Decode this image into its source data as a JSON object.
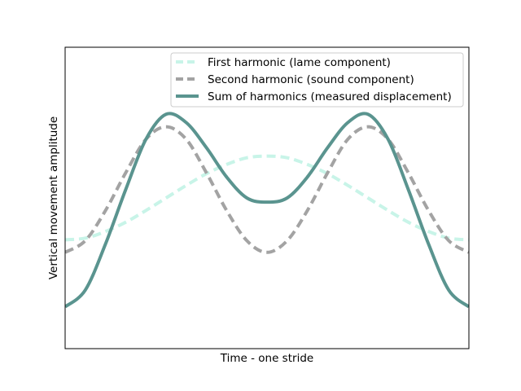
{
  "chart_data": {
    "type": "line",
    "title": "",
    "xlabel": "Time - one stride",
    "ylabel": "Vertical movement amplitude",
    "x_ticks_shown": false,
    "y_ticks_shown": false,
    "grid": false,
    "legend_position": "top-right",
    "xlim": [
      0,
      1
    ],
    "ylim": [
      -1.3,
      2.3
    ],
    "x": [
      0.0,
      0.05,
      0.1,
      0.15,
      0.2,
      0.25,
      0.3,
      0.35,
      0.4,
      0.45,
      0.5,
      0.55,
      0.6,
      0.65,
      0.7,
      0.75,
      0.8,
      0.85,
      0.9,
      0.95,
      1.0
    ],
    "series": [
      {
        "name": "First harmonic (lame component)",
        "color": "#c8f4e8",
        "style": "dashed",
        "values": [
          0.0,
          0.02,
          0.1,
          0.21,
          0.35,
          0.5,
          0.65,
          0.79,
          0.9,
          0.98,
          1.0,
          0.98,
          0.9,
          0.79,
          0.65,
          0.5,
          0.35,
          0.21,
          0.1,
          0.02,
          0.0
        ]
      },
      {
        "name": "Second harmonic (sound component)",
        "color": "#a3a3a3",
        "style": "dashed",
        "values": [
          -0.15,
          -0.01,
          0.35,
          0.8,
          1.2,
          1.35,
          1.2,
          0.8,
          0.35,
          -0.01,
          -0.15,
          -0.01,
          0.35,
          0.8,
          1.2,
          1.35,
          1.2,
          0.8,
          0.35,
          -0.01,
          -0.15
        ]
      },
      {
        "name": "Sum of harmonics (measured displacement)",
        "color": "#5a948f",
        "style": "solid",
        "values": [
          -0.8,
          -0.6,
          -0.05,
          0.6,
          1.2,
          1.5,
          1.4,
          1.1,
          0.75,
          0.5,
          0.45,
          0.5,
          0.75,
          1.1,
          1.4,
          1.5,
          1.2,
          0.6,
          -0.05,
          -0.6,
          -0.8
        ]
      }
    ]
  }
}
